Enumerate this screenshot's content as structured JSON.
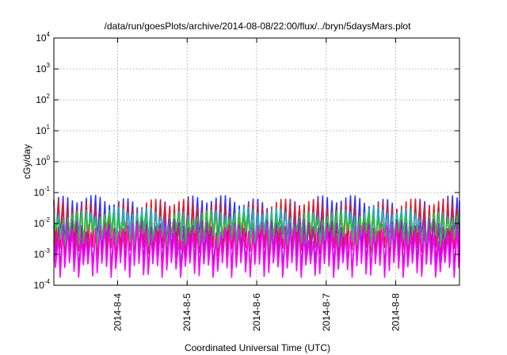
{
  "chart_data": {
    "type": "line",
    "title": "/data/run/goesPlots/archive/2014-08-08/22:00/flux/../bryn/5daysMars.plot",
    "xlabel": "Coordinated Universal Time (UTC)",
    "ylabel": "cGy/day",
    "yscale": "log",
    "ylim": [
      0.0001,
      10000
    ],
    "xlim": [
      "2014-08-03 02:00",
      "2014-08-08 22:00"
    ],
    "grid": true,
    "legend": "none",
    "x_ticks": [
      {
        "value": "2014-08-04 00:00",
        "label": "2014-8-4"
      },
      {
        "value": "2014-08-05 00:00",
        "label": "2014-8-5"
      },
      {
        "value": "2014-08-06 00:00",
        "label": "2014-8-6"
      },
      {
        "value": "2014-08-07 00:00",
        "label": "2014-8-7"
      },
      {
        "value": "2014-08-08 00:00",
        "label": "2014-8-8"
      }
    ],
    "y_ticks": [
      {
        "value": 0.0001,
        "base": "10",
        "exp": "-4"
      },
      {
        "value": 0.001,
        "base": "10",
        "exp": "-3"
      },
      {
        "value": 0.01,
        "base": "10",
        "exp": "-2"
      },
      {
        "value": 0.1,
        "base": "10",
        "exp": "-1"
      },
      {
        "value": 1,
        "base": "10",
        "exp": "0"
      },
      {
        "value": 10,
        "base": "10",
        "exp": "1"
      },
      {
        "value": 100,
        "base": "10",
        "exp": "2"
      },
      {
        "value": 1000,
        "base": "10",
        "exp": "3"
      },
      {
        "value": 10000,
        "base": "10",
        "exp": "4"
      }
    ],
    "cycle_hours": 1.6,
    "series": [
      {
        "color": "#3030ff",
        "peak": 0.052,
        "trough": 0.0022
      },
      {
        "color": "#e02020",
        "peak": 0.04,
        "trough": 0.0011
      },
      {
        "color": "#20b0c0",
        "peak": 0.022,
        "trough": 0.0045
      },
      {
        "color": "#30c030",
        "peak": 0.016,
        "trough": 0.0038
      },
      {
        "color": "#a020c0",
        "peak": 0.009,
        "trough": 0.0006
      },
      {
        "color": "#ff00ff",
        "peak": 0.006,
        "trough": 0.00035
      }
    ]
  }
}
